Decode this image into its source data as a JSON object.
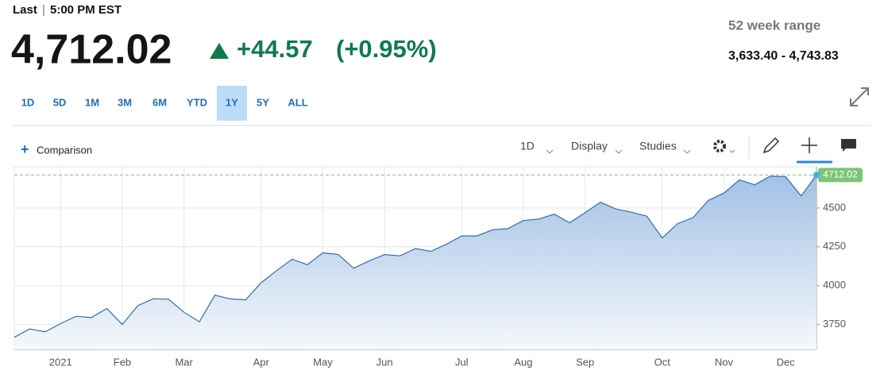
{
  "header": {
    "last_label": "Last",
    "time": "5:00 PM EST",
    "price": "4,712.02",
    "change": "+44.57",
    "change_percent": "(+0.95%)",
    "range_label": "52 week range",
    "range_value": "3,633.40 - 4,743.83"
  },
  "range_buttons": [
    "1D",
    "5D",
    "1M",
    "3M",
    "6M",
    "YTD",
    "1Y",
    "5Y",
    "ALL"
  ],
  "selected_range": "1Y",
  "toolbar": {
    "comparison": "Comparison",
    "interval": "1D",
    "display": "Display",
    "studies": "Studies"
  },
  "chart_data": {
    "type": "area",
    "categories": [
      null,
      null,
      null,
      "2021",
      null,
      null,
      null,
      "Feb",
      null,
      null,
      null,
      "Mar",
      null,
      null,
      null,
      null,
      "Apr",
      null,
      null,
      null,
      "May",
      null,
      null,
      null,
      "Jun",
      null,
      null,
      null,
      null,
      "Jul",
      null,
      null,
      null,
      "Aug",
      null,
      null,
      null,
      "Sep",
      null,
      null,
      null,
      null,
      "Oct",
      null,
      null,
      null,
      "Nov",
      null,
      null,
      null,
      "Dec",
      null,
      null
    ],
    "values": [
      3668,
      3722,
      3703,
      3756,
      3803,
      3795,
      3853,
      3750,
      3871,
      3916,
      3913,
      3829,
      3768,
      3939,
      3915,
      3909,
      4019,
      4097,
      4170,
      4135,
      4211,
      4201,
      4112,
      4159,
      4200,
      4192,
      4239,
      4221,
      4266,
      4320,
      4320,
      4360,
      4367,
      4419,
      4429,
      4460,
      4405,
      4470,
      4537,
      4493,
      4473,
      4448,
      4307,
      4399,
      4438,
      4549,
      4596,
      4680,
      4649,
      4704,
      4701,
      4577,
      4712.02
    ],
    "color": "#2f6db3",
    "ylim": [
      3590,
      4765
    ],
    "yticks": [
      3750,
      4000,
      4250,
      4500
    ],
    "grid": true,
    "last_value_line": true
  }
}
